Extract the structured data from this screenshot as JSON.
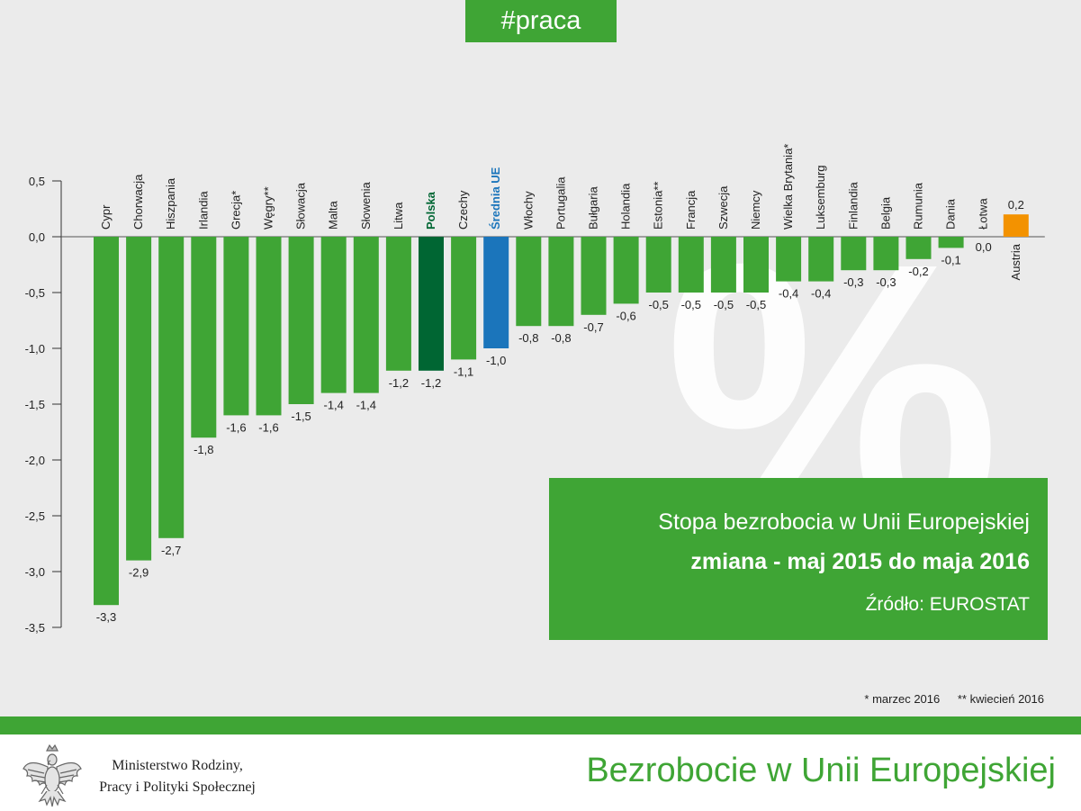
{
  "header": {
    "tag": "#praca"
  },
  "infobox": {
    "line1": "Stopa bezrobocia w Unii Europejskiej",
    "line2": "zmiana - maj 2015 do maja 2016",
    "source": "Źródło: EUROSTAT"
  },
  "footnotes": {
    "note1": "* marzec 2016",
    "note2": "** kwiecień 2016"
  },
  "footer": {
    "ministry_line1": "Ministerstwo Rodziny,",
    "ministry_line2": "Pracy i Polityki Społecznej",
    "title": "Bezrobocie w Unii Europejskiej"
  },
  "background_glyph": "%",
  "colors": {
    "bar": "#3fa535",
    "highlight_poland": "#006633",
    "highlight_eu_average": "#1b75bb",
    "positive": "#f39200",
    "background": "#ebebeb",
    "accent": "#3fa535"
  },
  "chart_data": {
    "type": "bar",
    "title": "Stopa bezrobocia w Unii Europejskiej",
    "ylim": [
      -3.5,
      0.5
    ],
    "yticks": [
      0.5,
      0.0,
      -0.5,
      -1.0,
      -1.5,
      -2.0,
      -2.5,
      -3.0,
      -3.5
    ],
    "ytick_labels": [
      "0,5",
      "0,0",
      "-0,5",
      "-1,0",
      "-1,5",
      "-2,0",
      "-2,5",
      "-3,0",
      "-3,5"
    ],
    "categories": [
      "Cypr",
      "Chorwacja",
      "Hiszpania",
      "Irlandia",
      "Grecja*",
      "Węgry**",
      "Słowacja",
      "Malta",
      "Słowenia",
      "Litwa",
      "Polska",
      "Czechy",
      "Średnia UE",
      "Włochy",
      "Portugalia",
      "Bułgaria",
      "Holandia",
      "Estonia**",
      "Francja",
      "Szwecja",
      "Niemcy",
      "Wielka Brytania*",
      "Luksemburg",
      "Finlandia",
      "Belgia",
      "Rumunia",
      "Dania",
      "Łotwa",
      "Austria"
    ],
    "values": [
      -3.3,
      -2.9,
      -2.7,
      -1.8,
      -1.6,
      -1.6,
      -1.5,
      -1.4,
      -1.4,
      -1.2,
      -1.2,
      -1.1,
      -1.0,
      -0.8,
      -0.8,
      -0.7,
      -0.6,
      -0.5,
      -0.5,
      -0.5,
      -0.5,
      -0.4,
      -0.4,
      -0.3,
      -0.3,
      -0.2,
      -0.1,
      0.0,
      0.2
    ],
    "value_labels": [
      "-3,3",
      "-2,9",
      "-2,7",
      "-1,8",
      "-1,6",
      "-1,6",
      "-1,5",
      "-1,4",
      "-1,4",
      "-1,2",
      "-1,2",
      "-1,1",
      "-1,0",
      "-0,8",
      "-0,8",
      "-0,7",
      "-0,6",
      "-0,5",
      "-0,5",
      "-0,5",
      "-0,5",
      "-0,4",
      "-0,4",
      "-0,3",
      "-0,3",
      "-0,2",
      "-0,1",
      "0,0",
      "0,2"
    ],
    "highlights": {
      "Polska": "poland",
      "Średnia UE": "eu_average",
      "Austria": "positive"
    }
  }
}
